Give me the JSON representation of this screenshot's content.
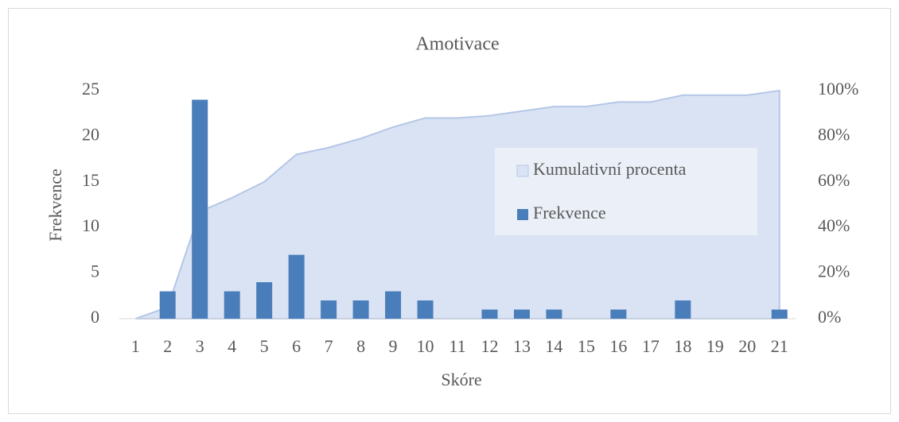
{
  "chart_data": {
    "type": "bar_area",
    "title": "Amotivace",
    "x_label": "Skóre",
    "y_label": "Frekvence",
    "categories": [
      "1",
      "2",
      "3",
      "4",
      "5",
      "6",
      "7",
      "8",
      "9",
      "10",
      "11",
      "12",
      "13",
      "14",
      "15",
      "16",
      "17",
      "18",
      "19",
      "20",
      "21"
    ],
    "series": [
      {
        "name": "Kumulativní procenta",
        "type": "area",
        "axis": "y2",
        "color": "#dae3f3",
        "edge_color": "#b4c7e7",
        "values": [
          0,
          5,
          47,
          53,
          60,
          72,
          75,
          79,
          84,
          88,
          88,
          89,
          91,
          93,
          93,
          95,
          95,
          98,
          98,
          98,
          100
        ]
      },
      {
        "name": "Frekvence",
        "type": "bar",
        "color": "#4a7ebb",
        "values": [
          0,
          3,
          24,
          3,
          4,
          7,
          2,
          2,
          3,
          2,
          0,
          1,
          1,
          1,
          0,
          1,
          0,
          2,
          0,
          0,
          1
        ]
      }
    ],
    "ylim": [
      0,
      25
    ],
    "yticks": [
      0,
      5,
      10,
      15,
      20,
      25
    ],
    "y2lim": [
      0,
      100
    ],
    "y2ticks": [
      {
        "value": 0,
        "label": "0%"
      },
      {
        "value": 20,
        "label": "20%"
      },
      {
        "value": 40,
        "label": "40%"
      },
      {
        "value": 60,
        "label": "60%"
      },
      {
        "value": 80,
        "label": "80%"
      },
      {
        "value": 100,
        "label": "100%"
      }
    ],
    "grid": false,
    "legend": "right"
  }
}
